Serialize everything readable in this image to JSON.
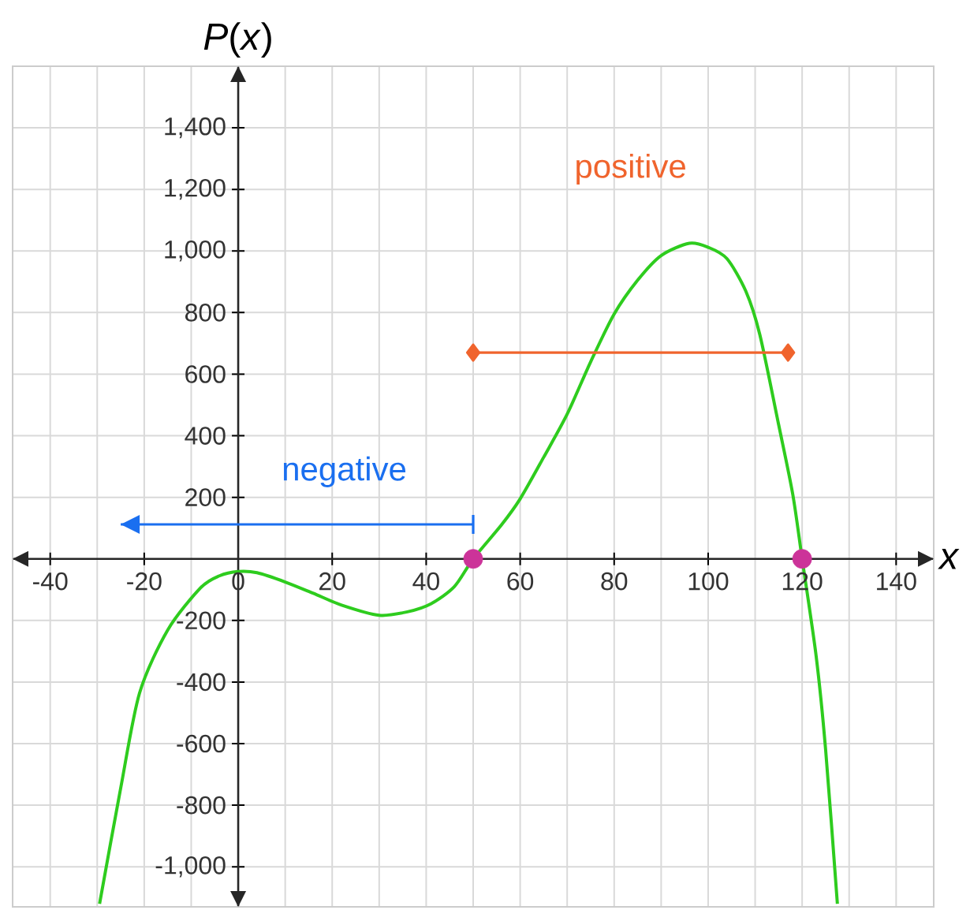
{
  "chart_data": {
    "type": "line",
    "xlabel": "x",
    "ylabel": "*P*(*x*)",
    "xlim": [
      -48,
      148
    ],
    "ylim": [
      -1130,
      1600
    ],
    "xticks": [
      -40,
      -20,
      0,
      20,
      40,
      60,
      80,
      100,
      120,
      140
    ],
    "yticks": [
      {
        "value": -1000,
        "label": "-1,000"
      },
      {
        "value": -800,
        "label": "-800"
      },
      {
        "value": -600,
        "label": "-600"
      },
      {
        "value": -400,
        "label": "-400"
      },
      {
        "value": -200,
        "label": "-200"
      },
      {
        "value": 200,
        "label": "200"
      },
      {
        "value": 400,
        "label": "400"
      },
      {
        "value": 600,
        "label": "600"
      },
      {
        "value": 800,
        "label": "800"
      },
      {
        "value": 1000,
        "label": "1,000"
      },
      {
        "value": 1200,
        "label": "1,200"
      },
      {
        "value": 1400,
        "label": "1,400"
      }
    ],
    "grid": true,
    "series": [
      {
        "color": "#2ecc1e",
        "x": [
          -29.5,
          -25,
          -21,
          -15,
          -8,
          -4,
          0,
          4,
          10,
          16,
          22,
          30,
          36,
          41,
          46,
          50,
          56,
          60,
          65,
          70,
          75,
          80,
          85,
          90,
          96,
          100,
          104,
          108,
          111,
          115,
          118,
          120,
          123,
          125,
          127.5
        ],
        "values": [
          -1120,
          -744,
          -436,
          -231,
          -94,
          -55,
          -41,
          -45,
          -75,
          -112,
          -150,
          -183,
          -172,
          -146,
          -90,
          0,
          110,
          195,
          330,
          470,
          640,
          795,
          905,
          985,
          1025,
          1012,
          975,
          870,
          728,
          436,
          210,
          0,
          -318,
          -620,
          -1120
        ]
      },
      {
        "name": "negative",
        "type": "line",
        "color": "#1a6ff0",
        "x": [
          50,
          -25
        ],
        "values": [
          112,
          112
        ]
      },
      {
        "name": "positive",
        "type": "line",
        "color": "#f0642d",
        "marker": "diamond",
        "x": [
          50,
          117
        ],
        "values": [
          670,
          670
        ]
      },
      {
        "type": "scatter",
        "color": "#cc3399",
        "marker": "circle",
        "x": [
          50,
          120
        ],
        "values": [
          0,
          0
        ]
      }
    ]
  }
}
